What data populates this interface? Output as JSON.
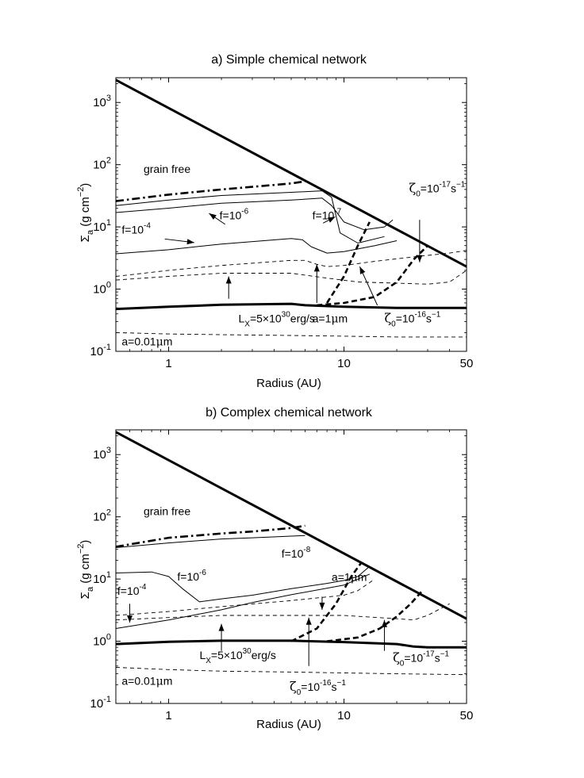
{
  "chart_data": [
    {
      "type": "line",
      "title": "a) Simple chemical network",
      "xlabel": "Radius (AU)",
      "ylabel": "Σ_a (g cm^-2)",
      "xscale": "log",
      "yscale": "log",
      "xlim": [
        0.5,
        50
      ],
      "ylim": [
        0.1,
        2500
      ],
      "xticks": [
        {
          "v": 1,
          "label": "1"
        },
        {
          "v": 10,
          "label": "10"
        },
        {
          "v": 50,
          "label": "50"
        }
      ],
      "yticks": [
        {
          "v": 0.1,
          "base": "10",
          "exp": "-1"
        },
        {
          "v": 1,
          "base": "10",
          "exp": "0"
        },
        {
          "v": 10,
          "base": "10",
          "exp": "1"
        },
        {
          "v": 100,
          "base": "10",
          "exp": "2"
        },
        {
          "v": 1000,
          "base": "10",
          "exp": "3"
        }
      ],
      "grid": false,
      "series": [
        {
          "style": "thick",
          "x": [
            0.5,
            50
          ],
          "y": [
            2300,
            2.3
          ]
        },
        {
          "style": "dashdot",
          "x": [
            0.5,
            1,
            2,
            3,
            5,
            6
          ],
          "y": [
            26,
            33,
            40,
            44,
            50,
            54
          ]
        },
        {
          "style": "thin",
          "x": [
            0.5,
            1,
            2,
            5,
            7.5,
            8.5,
            9.5,
            12,
            17
          ],
          "y": [
            22,
            27,
            32,
            36,
            38,
            30,
            8,
            5.5,
            7
          ]
        },
        {
          "style": "thin",
          "x": [
            0.5,
            1,
            2,
            5,
            7.5,
            8.5,
            10,
            13,
            17,
            19
          ],
          "y": [
            17,
            20,
            24,
            27,
            29,
            22,
            12,
            9,
            10,
            13
          ]
        },
        {
          "style": "thin",
          "x": [
            0.5,
            1,
            2,
            5,
            5.8,
            6.5,
            8,
            10,
            15,
            20
          ],
          "y": [
            3.7,
            4.3,
            5.3,
            6.5,
            6.2,
            4.8,
            3.8,
            4,
            5,
            6
          ]
        },
        {
          "style": "dashed",
          "x": [
            0.5,
            1,
            2,
            5,
            6,
            7,
            8,
            10,
            15,
            25,
            40,
            50
          ],
          "y": [
            1.6,
            2,
            2.4,
            2.9,
            2.9,
            2.5,
            2.3,
            2.4,
            2.8,
            3.3,
            3.8,
            4.2
          ]
        },
        {
          "style": "dashed",
          "x": [
            0.5,
            1,
            2,
            5,
            8,
            12,
            20,
            30,
            40,
            50
          ],
          "y": [
            1.4,
            1.6,
            1.8,
            1.8,
            1.5,
            1.3,
            1.25,
            1.2,
            1.3,
            2
          ]
        },
        {
          "style": "thickdashed",
          "x": [
            8,
            10,
            12,
            14
          ],
          "y": [
            0.6,
            1.6,
            5,
            12
          ]
        },
        {
          "style": "thickdashed",
          "x": [
            7,
            10,
            15,
            20,
            25,
            30
          ],
          "y": [
            0.55,
            0.6,
            0.75,
            1.3,
            3,
            5
          ]
        },
        {
          "style": "thick",
          "x": [
            0.5,
            1,
            2,
            5,
            6,
            10,
            20,
            50
          ],
          "y": [
            0.48,
            0.52,
            0.56,
            0.58,
            0.55,
            0.52,
            0.5,
            0.5
          ]
        },
        {
          "style": "dashed",
          "x": [
            0.5,
            1,
            2,
            5,
            10,
            20,
            50
          ],
          "y": [
            0.2,
            0.19,
            0.185,
            0.18,
            0.175,
            0.17,
            0.17
          ]
        }
      ],
      "annotations": [
        {
          "type": "plain",
          "text": "grain free",
          "x": 0.72,
          "y": 74
        },
        {
          "type": "sup",
          "pre": "f=10",
          "sup": "-4",
          "post": "",
          "x": 0.54,
          "y": 7.8
        },
        {
          "type": "sup",
          "pre": "f=10",
          "sup": "-6",
          "post": "",
          "x": 1.95,
          "y": 13.2
        },
        {
          "type": "sup",
          "pre": "f=10",
          "sup": "-7",
          "post": "",
          "x": 6.6,
          "y": 13.2
        },
        {
          "type": "sub",
          "pre": "L",
          "sub": "X",
          "mid": "=5×10",
          "sup": "30",
          "post": "erg/s",
          "x": 2.5,
          "y": 0.29
        },
        {
          "type": "mu",
          "pre": "a=1",
          "post": "m",
          "x": 6.6,
          "y": 0.29
        },
        {
          "type": "zeta",
          "sup": "-16",
          "x": 17,
          "y": 0.29
        },
        {
          "type": "zeta",
          "sup": "-17",
          "x": 23.5,
          "y": 36
        },
        {
          "type": "mu",
          "pre": "a=0.01",
          "post": "m",
          "x": 0.54,
          "y": 0.125
        }
      ]
    },
    {
      "type": "line",
      "title": "b) Complex chemical network",
      "xlabel": "Radius (AU)",
      "ylabel": "Σ_a (g cm^-2)",
      "xscale": "log",
      "yscale": "log",
      "xlim": [
        0.5,
        50
      ],
      "ylim": [
        0.1,
        2500
      ],
      "xticks": [
        {
          "v": 1,
          "label": "1"
        },
        {
          "v": 10,
          "label": "10"
        },
        {
          "v": 50,
          "label": "50"
        }
      ],
      "yticks": [
        {
          "v": 0.1,
          "base": "10",
          "exp": "-1"
        },
        {
          "v": 1,
          "base": "10",
          "exp": "0"
        },
        {
          "v": 10,
          "base": "10",
          "exp": "1"
        },
        {
          "v": 100,
          "base": "10",
          "exp": "2"
        },
        {
          "v": 1000,
          "base": "10",
          "exp": "3"
        }
      ],
      "grid": false,
      "series": [
        {
          "style": "thick",
          "x": [
            0.5,
            50
          ],
          "y": [
            2300,
            2.3
          ]
        },
        {
          "style": "dashdot",
          "x": [
            0.5,
            1,
            2,
            3,
            5,
            6
          ],
          "y": [
            33,
            46,
            54,
            58,
            66,
            72
          ]
        },
        {
          "style": "thin",
          "x": [
            0.5,
            1,
            2,
            3,
            5,
            6
          ],
          "y": [
            32,
            38,
            44,
            46,
            49,
            50
          ]
        },
        {
          "style": "thin",
          "x": [
            0.5,
            0.8,
            1,
            1.2,
            1.5,
            2,
            3,
            5,
            8,
            10,
            12,
            14
          ],
          "y": [
            12.5,
            13,
            11,
            7,
            4.3,
            4.8,
            5.5,
            7,
            8.5,
            9.5,
            11,
            16
          ]
        },
        {
          "style": "thin",
          "x": [
            0.5,
            1,
            2,
            3,
            5,
            10,
            14
          ],
          "y": [
            1.6,
            2.2,
            3.2,
            4.2,
            5.6,
            8,
            12
          ]
        },
        {
          "style": "dashed",
          "x": [
            0.5,
            1,
            2,
            5,
            10,
            12,
            15
          ],
          "y": [
            2.6,
            3,
            3.6,
            4.5,
            5.5,
            6.5,
            10
          ]
        },
        {
          "style": "dashed",
          "x": [
            0.5,
            1,
            2,
            5,
            10,
            20,
            25,
            30,
            40
          ],
          "y": [
            2.2,
            2.4,
            2.6,
            2.6,
            2.6,
            2.3,
            2.2,
            2.6,
            4
          ]
        },
        {
          "style": "thickdashed",
          "x": [
            5,
            7,
            9,
            11,
            12.5
          ],
          "y": [
            1,
            1.6,
            4,
            11,
            18
          ]
        },
        {
          "style": "thickdashed",
          "x": [
            8,
            12,
            16,
            20,
            24,
            28
          ],
          "y": [
            1,
            1.15,
            1.6,
            2.5,
            4,
            6.5
          ]
        },
        {
          "style": "thick",
          "x": [
            0.5,
            1,
            2,
            5,
            10,
            20,
            25,
            30,
            50
          ],
          "y": [
            0.9,
            0.98,
            1.02,
            1.02,
            0.97,
            0.9,
            0.82,
            0.8,
            0.8
          ]
        },
        {
          "style": "dashed",
          "x": [
            0.5,
            1,
            2,
            5,
            10,
            20,
            50
          ],
          "y": [
            0.38,
            0.35,
            0.33,
            0.32,
            0.31,
            0.3,
            0.29
          ]
        }
      ],
      "annotations": [
        {
          "type": "plain",
          "text": "grain free",
          "x": 0.72,
          "y": 106
        },
        {
          "type": "sup",
          "pre": "f=10",
          "sup": "-8",
          "post": "",
          "x": 4.4,
          "y": 22
        },
        {
          "type": "sup",
          "pre": "f=10",
          "sup": "-6",
          "post": "",
          "x": 1.12,
          "y": 9.5
        },
        {
          "type": "mu",
          "pre": "a=1",
          "post": "m",
          "x": 8.5,
          "y": 9.3
        },
        {
          "type": "sup",
          "pre": "f=10",
          "sup": "-4",
          "post": "",
          "x": 0.51,
          "y": 5.6
        },
        {
          "type": "sub",
          "pre": "L",
          "sub": "X",
          "mid": "=5×10",
          "sup": "30",
          "post": "erg/s",
          "x": 1.5,
          "y": 0.52
        },
        {
          "type": "zeta",
          "sup": "-17",
          "x": 19,
          "y": 0.47
        },
        {
          "type": "zeta",
          "sup": "-16",
          "x": 4.9,
          "y": 0.16
        },
        {
          "type": "mu",
          "pre": "a=0.01",
          "post": "m",
          "x": 0.54,
          "y": 0.2
        }
      ]
    }
  ]
}
